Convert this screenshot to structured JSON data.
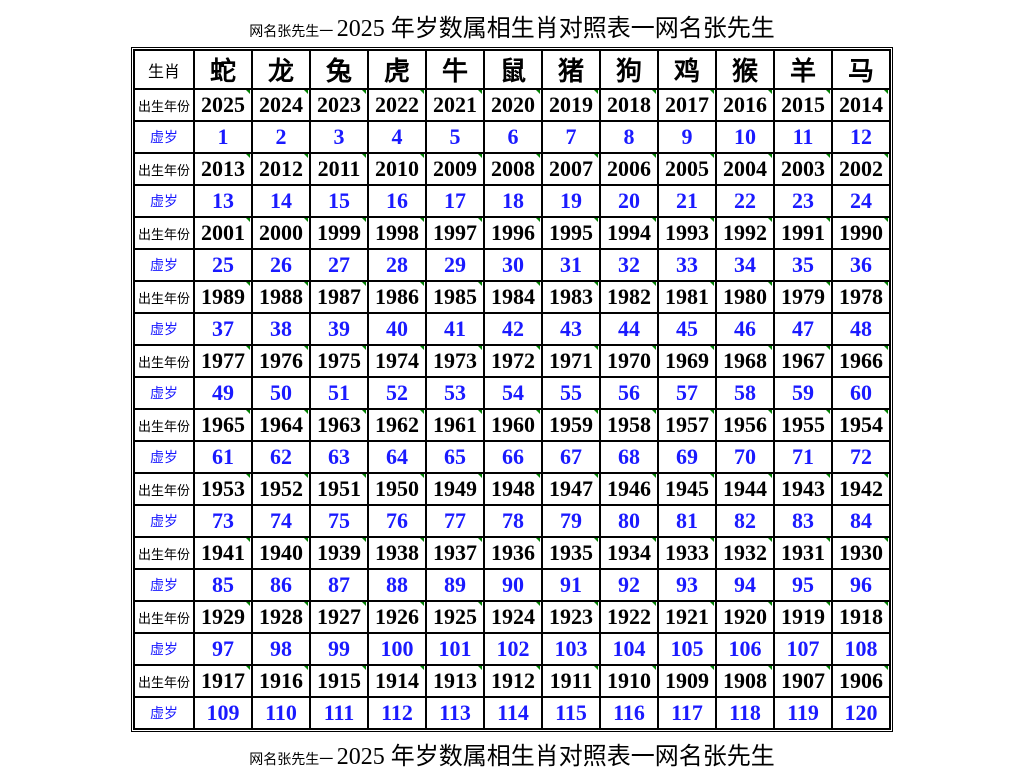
{
  "title_prefix": "网名张先生一 ",
  "title_main": "2025 年岁数属相生肖对照表一网名张先生",
  "footer_prefix": "网名张先生一 ",
  "footer_main": "2025 年岁数属相生肖对照表一网名张先生",
  "header_label": "生肖",
  "row_label_year": "出生年份",
  "row_label_age": "虚岁",
  "zodiac": [
    "蛇",
    "龙",
    "兔",
    "虎",
    "牛",
    "鼠",
    "猪",
    "狗",
    "鸡",
    "猴",
    "羊",
    "马"
  ],
  "groups": [
    {
      "years": [
        2025,
        2024,
        2023,
        2022,
        2021,
        2020,
        2019,
        2018,
        2017,
        2016,
        2015,
        2014
      ],
      "ages": [
        1,
        2,
        3,
        4,
        5,
        6,
        7,
        8,
        9,
        10,
        11,
        12
      ]
    },
    {
      "years": [
        2013,
        2012,
        2011,
        2010,
        2009,
        2008,
        2007,
        2006,
        2005,
        2004,
        2003,
        2002
      ],
      "ages": [
        13,
        14,
        15,
        16,
        17,
        18,
        19,
        20,
        21,
        22,
        23,
        24
      ]
    },
    {
      "years": [
        2001,
        2000,
        1999,
        1998,
        1997,
        1996,
        1995,
        1994,
        1993,
        1992,
        1991,
        1990
      ],
      "ages": [
        25,
        26,
        27,
        28,
        29,
        30,
        31,
        32,
        33,
        34,
        35,
        36
      ]
    },
    {
      "years": [
        1989,
        1988,
        1987,
        1986,
        1985,
        1984,
        1983,
        1982,
        1981,
        1980,
        1979,
        1978
      ],
      "ages": [
        37,
        38,
        39,
        40,
        41,
        42,
        43,
        44,
        45,
        46,
        47,
        48
      ]
    },
    {
      "years": [
        1977,
        1976,
        1975,
        1974,
        1973,
        1972,
        1971,
        1970,
        1969,
        1968,
        1967,
        1966
      ],
      "ages": [
        49,
        50,
        51,
        52,
        53,
        54,
        55,
        56,
        57,
        58,
        59,
        60
      ]
    },
    {
      "years": [
        1965,
        1964,
        1963,
        1962,
        1961,
        1960,
        1959,
        1958,
        1957,
        1956,
        1955,
        1954
      ],
      "ages": [
        61,
        62,
        63,
        64,
        65,
        66,
        67,
        68,
        69,
        70,
        71,
        72
      ]
    },
    {
      "years": [
        1953,
        1952,
        1951,
        1950,
        1949,
        1948,
        1947,
        1946,
        1945,
        1944,
        1943,
        1942
      ],
      "ages": [
        73,
        74,
        75,
        76,
        77,
        78,
        79,
        80,
        81,
        82,
        83,
        84
      ]
    },
    {
      "years": [
        1941,
        1940,
        1939,
        1938,
        1937,
        1936,
        1935,
        1934,
        1933,
        1932,
        1931,
        1930
      ],
      "ages": [
        85,
        86,
        87,
        88,
        89,
        90,
        91,
        92,
        93,
        94,
        95,
        96
      ]
    },
    {
      "years": [
        1929,
        1928,
        1927,
        1926,
        1925,
        1924,
        1923,
        1922,
        1921,
        1920,
        1919,
        1918
      ],
      "ages": [
        97,
        98,
        99,
        100,
        101,
        102,
        103,
        104,
        105,
        106,
        107,
        108
      ]
    },
    {
      "years": [
        1917,
        1916,
        1915,
        1914,
        1913,
        1912,
        1911,
        1910,
        1909,
        1908,
        1907,
        1906
      ],
      "ages": [
        109,
        110,
        111,
        112,
        113,
        114,
        115,
        116,
        117,
        118,
        119,
        120
      ]
    }
  ],
  "style": {
    "background_color": "#ffffff",
    "border_color": "#000000",
    "year_text_color": "#000000",
    "age_text_color": "#1a1aff",
    "zodiac_text_color": "#000000",
    "tick_color": "#008000",
    "title_fontsize_small": 14,
    "title_fontsize_large": 24,
    "zodiac_fontsize": 26,
    "cell_fontsize": 22,
    "label_fontsize": 13
  }
}
